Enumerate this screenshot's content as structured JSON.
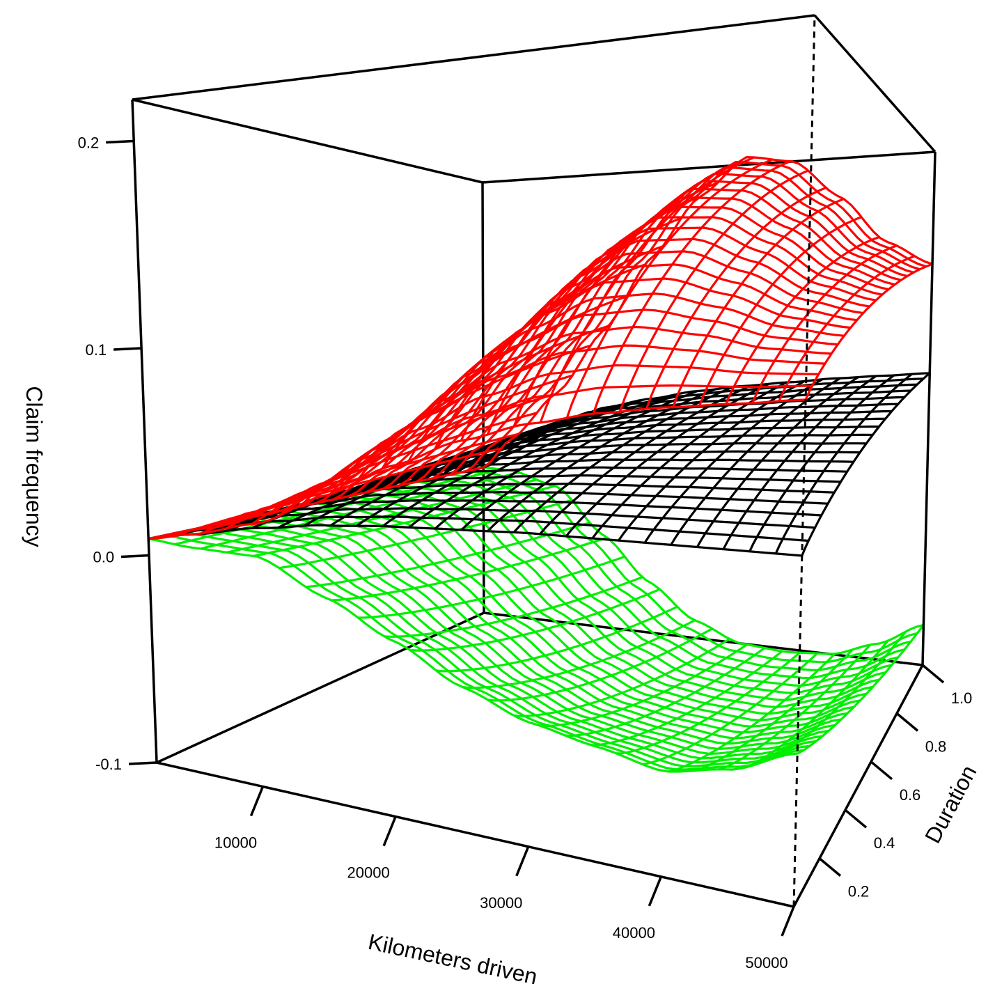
{
  "chart_data": {
    "type": "surface3d",
    "xlabel": "Kilometers driven",
    "ylabel": "Duration",
    "zlabel": "Claim frequency",
    "x_ticks": [
      "10000",
      "20000",
      "30000",
      "40000",
      "50000"
    ],
    "y_ticks": [
      "0.2",
      "0.4",
      "0.6",
      "0.8",
      "1.0"
    ],
    "z_ticks": [
      "-0.1",
      "0.0",
      "0.1",
      "0.2"
    ],
    "xlim": [
      2000,
      50000
    ],
    "ylim": [
      0,
      1.0
    ],
    "zlim": [
      -0.1,
      0.22
    ],
    "grid_size": [
      25,
      20
    ],
    "series": [
      {
        "color": "#00ee00",
        "description": "lower confidence surface",
        "x": [
          2000,
          5000,
          10000,
          15000,
          20000,
          25000,
          30000,
          35000,
          40000,
          45000,
          50000
        ],
        "z_at_duration_1": [
          0.008,
          0.007,
          -0.003,
          -0.035,
          -0.065,
          -0.088,
          -0.1,
          -0.102,
          -0.1,
          -0.09,
          -0.075
        ],
        "z_at_duration_0": [
          0.008,
          0.006,
          0.005,
          -0.01,
          -0.025,
          -0.04,
          -0.05,
          -0.055,
          -0.06,
          -0.055,
          -0.045
        ]
      },
      {
        "color": "#000000",
        "description": "fitted surface",
        "x": [
          2000,
          5000,
          10000,
          15000,
          20000,
          25000,
          30000,
          35000,
          40000,
          45000,
          50000
        ],
        "z_at_duration_1": [
          0.008,
          0.02,
          0.04,
          0.055,
          0.062,
          0.068,
          0.072,
          0.075,
          0.078,
          0.08,
          0.082
        ],
        "z_at_duration_0": [
          0.008,
          0.012,
          0.018,
          0.022,
          0.024,
          0.025,
          0.026,
          0.026,
          0.026,
          0.026,
          0.026
        ]
      },
      {
        "color": "#ff0000",
        "description": "upper confidence surface",
        "x": [
          2000,
          5000,
          10000,
          15000,
          20000,
          25000,
          30000,
          35000,
          40000,
          45000,
          50000
        ],
        "z_at_duration_1": [
          0.008,
          0.03,
          0.065,
          0.11,
          0.16,
          0.2,
          0.225,
          0.22,
          0.195,
          0.165,
          0.15
        ],
        "z_at_duration_0": [
          0.008,
          0.012,
          0.02,
          0.035,
          0.05,
          0.062,
          0.07,
          0.075,
          0.078,
          0.08,
          0.082
        ]
      }
    ]
  }
}
